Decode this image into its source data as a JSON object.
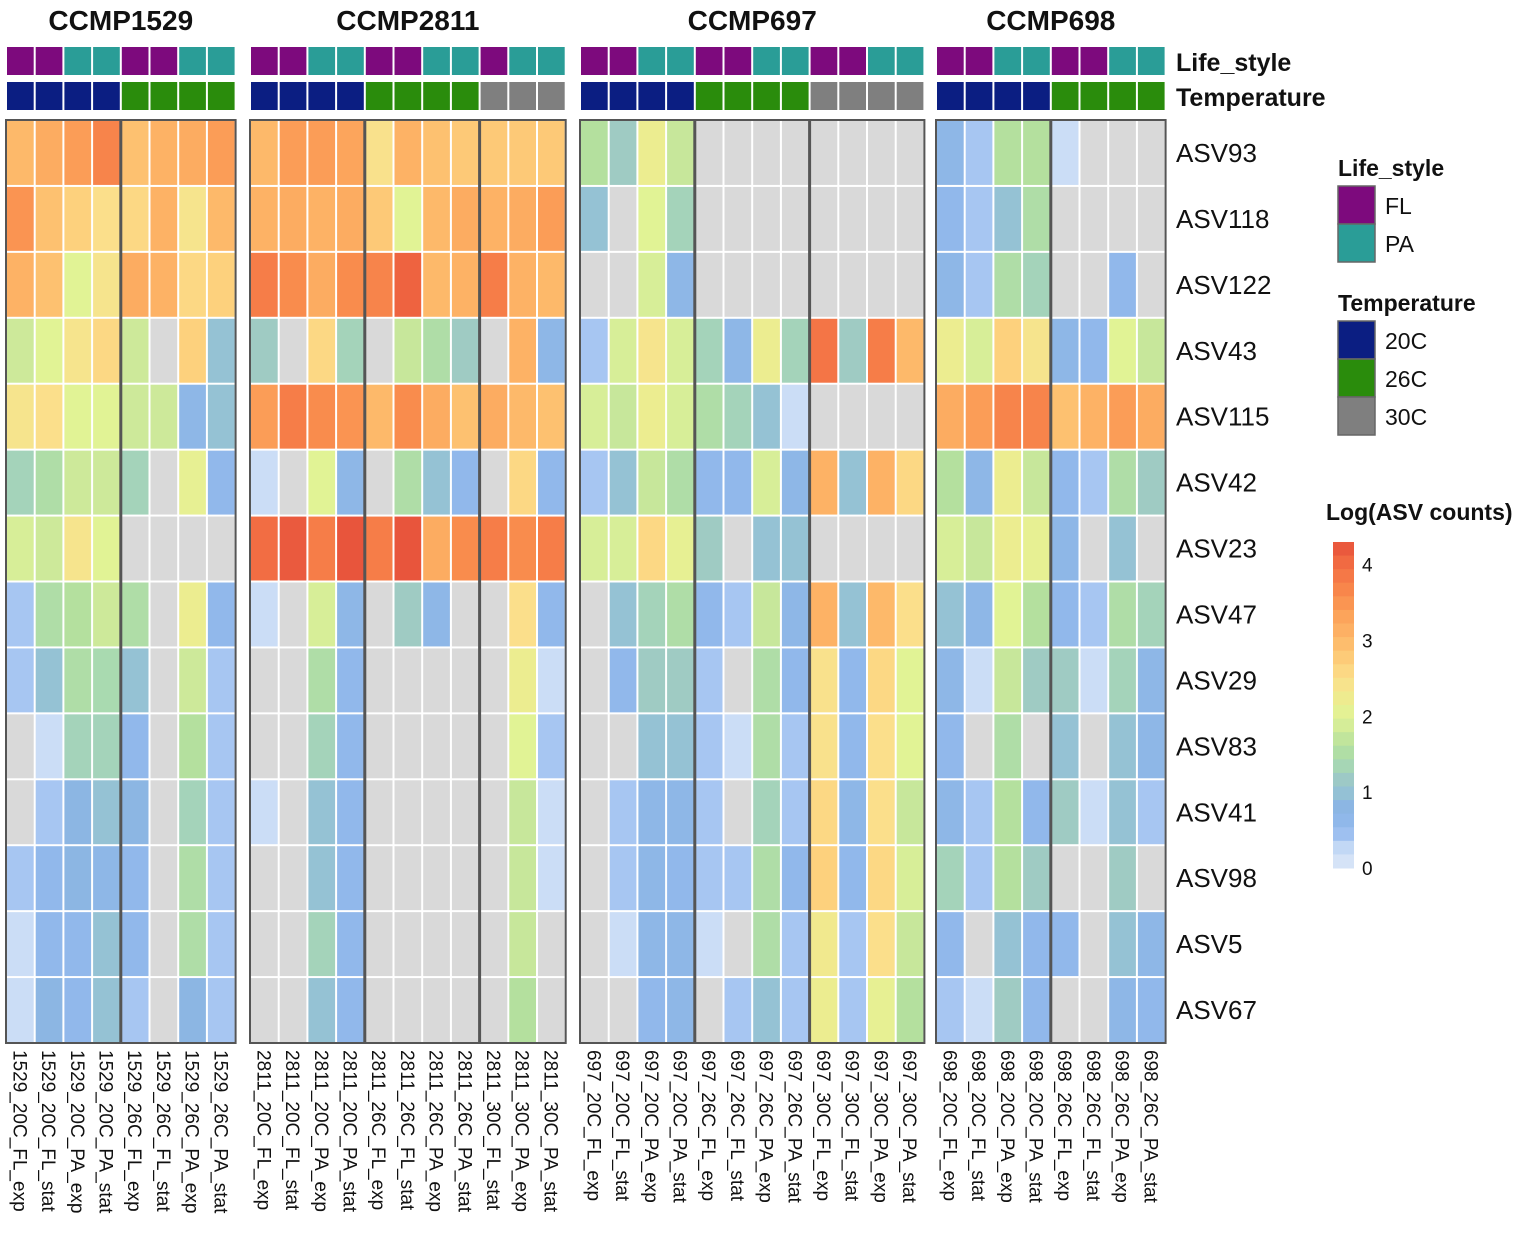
{
  "chart_data": {
    "type": "heatmap",
    "rows": [
      "ASV93",
      "ASV118",
      "ASV122",
      "ASV43",
      "ASV115",
      "ASV42",
      "ASV23",
      "ASV47",
      "ASV29",
      "ASV83",
      "ASV41",
      "ASV98",
      "ASV5",
      "ASV67"
    ],
    "annotation_labels": {
      "life_style": "Life_style",
      "temperature": "Temperature"
    },
    "panels": [
      {
        "title": "CCMP1529",
        "columns": [
          "1529_20C_FL_exp",
          "1529_20C_FL_stat",
          "1529_20C_PA_exp",
          "1529_20C_PA_stat",
          "1529_26C_FL_exp",
          "1529_26C_FL_stat",
          "1529_26C_PA_exp",
          "1529_26C_PA_stat"
        ],
        "group_breaks": [
          4
        ],
        "values": [
          [
            3.0,
            3.2,
            3.4,
            3.7,
            2.9,
            3.1,
            3.2,
            3.4
          ],
          [
            3.5,
            2.9,
            2.7,
            2.5,
            2.6,
            3.1,
            2.4,
            3.0
          ],
          [
            3.1,
            2.9,
            2.0,
            2.4,
            3.2,
            3.1,
            2.6,
            2.7
          ],
          [
            1.8,
            2.0,
            2.4,
            2.6,
            1.8,
            null,
            2.7,
            1.0
          ],
          [
            2.4,
            2.5,
            2.0,
            2.0,
            1.8,
            1.8,
            0.7,
            1.0
          ],
          [
            1.3,
            1.5,
            1.8,
            1.8,
            1.3,
            null,
            2.1,
            0.6
          ],
          [
            1.9,
            1.8,
            2.4,
            2.0,
            null,
            null,
            null,
            null
          ],
          [
            0.4,
            1.5,
            1.6,
            1.8,
            1.5,
            null,
            2.2,
            0.6
          ],
          [
            0.4,
            1.0,
            1.5,
            1.4,
            1.0,
            null,
            1.8,
            0.4
          ],
          [
            null,
            0.2,
            1.3,
            1.3,
            0.6,
            null,
            1.6,
            0.4
          ],
          [
            null,
            0.4,
            0.8,
            1.0,
            0.8,
            null,
            1.3,
            0.4
          ],
          [
            0.4,
            0.6,
            0.8,
            0.7,
            0.6,
            null,
            1.5,
            0.4
          ],
          [
            0.2,
            0.6,
            0.6,
            1.0,
            0.6,
            null,
            1.5,
            0.4
          ],
          [
            0.2,
            0.8,
            0.6,
            1.0,
            0.4,
            null,
            0.8,
            0.4
          ]
        ]
      },
      {
        "title": "CCMP2811",
        "columns": [
          "2811_20C_FL_exp",
          "2811_20C_FL_stat",
          "2811_20C_PA_exp",
          "2811_20C_PA_stat",
          "2811_26C_FL_exp",
          "2811_26C_FL_stat",
          "2811_26C_PA_exp",
          "2811_26C_PA_stat",
          "2811_30C_FL_stat",
          "2811_30C_PA_exp",
          "2811_30C_PA_stat"
        ],
        "group_breaks": [
          4,
          8
        ],
        "values": [
          [
            3.0,
            3.4,
            3.4,
            3.3,
            2.45,
            3.1,
            2.9,
            2.8,
            2.8,
            2.8,
            2.8
          ],
          [
            3.1,
            3.2,
            3.1,
            3.2,
            2.8,
            2.0,
            3.0,
            3.2,
            3.1,
            3.2,
            3.4
          ],
          [
            3.8,
            3.6,
            3.2,
            3.6,
            3.7,
            4.1,
            3.0,
            3.1,
            3.8,
            3.1,
            3.0
          ],
          [
            1.2,
            null,
            2.6,
            1.3,
            null,
            1.75,
            1.5,
            1.2,
            null,
            3.1,
            0.7
          ],
          [
            3.4,
            3.8,
            3.6,
            3.5,
            3.0,
            3.6,
            3.2,
            2.9,
            3.2,
            3.0,
            2.9
          ],
          [
            0.2,
            null,
            2.0,
            0.7,
            null,
            1.5,
            1.0,
            0.6,
            null,
            2.6,
            0.6
          ],
          [
            4.0,
            4.2,
            3.8,
            4.25,
            3.8,
            4.25,
            3.2,
            3.6,
            3.8,
            3.6,
            3.8
          ],
          [
            0.2,
            null,
            1.9,
            0.7,
            null,
            1.2,
            0.7,
            null,
            null,
            2.5,
            0.6
          ],
          [
            null,
            null,
            1.5,
            0.6,
            null,
            null,
            null,
            null,
            null,
            2.2,
            0.2
          ],
          [
            null,
            null,
            1.3,
            0.6,
            null,
            null,
            null,
            null,
            null,
            2.0,
            0.4
          ],
          [
            0.2,
            null,
            1.0,
            0.6,
            null,
            null,
            null,
            null,
            null,
            1.75,
            0.2
          ],
          [
            null,
            null,
            1.0,
            0.6,
            null,
            null,
            null,
            null,
            null,
            1.75,
            0.2
          ],
          [
            null,
            null,
            1.3,
            0.6,
            null,
            null,
            null,
            null,
            null,
            1.75,
            null
          ],
          [
            null,
            null,
            1.0,
            0.6,
            null,
            null,
            null,
            null,
            null,
            1.6,
            null
          ]
        ]
      },
      {
        "title": "CCMP697",
        "columns": [
          "697_20C_FL_exp",
          "697_20C_FL_stat",
          "697_20C_PA_exp",
          "697_20C_PA_stat",
          "697_26C_FL_exp",
          "697_26C_FL_stat",
          "697_26C_PA_exp",
          "697_26C_PA_stat",
          "697_30C_FL_exp",
          "697_30C_FL_stat",
          "697_30C_PA_exp",
          "697_30C_PA_stat"
        ],
        "group_breaks": [
          4,
          8
        ],
        "values": [
          [
            1.6,
            1.2,
            2.2,
            1.75,
            null,
            null,
            null,
            null,
            null,
            null,
            null,
            null
          ],
          [
            1.0,
            null,
            2.0,
            1.3,
            null,
            null,
            null,
            null,
            null,
            null,
            null,
            null
          ],
          [
            null,
            null,
            1.9,
            0.7,
            null,
            null,
            null,
            null,
            null,
            null,
            null,
            null
          ],
          [
            0.4,
            1.9,
            2.4,
            1.9,
            1.3,
            0.7,
            2.2,
            1.3,
            3.9,
            1.2,
            3.8,
            3.0
          ],
          [
            1.9,
            1.75,
            2.2,
            1.9,
            1.5,
            1.3,
            1.0,
            0.2,
            null,
            null,
            null,
            null
          ],
          [
            0.4,
            1.0,
            1.75,
            1.5,
            0.6,
            0.6,
            1.9,
            0.7,
            3.1,
            1.0,
            3.1,
            2.6
          ],
          [
            1.9,
            1.9,
            2.6,
            2.1,
            1.2,
            null,
            1.0,
            1.0,
            null,
            null,
            null,
            null
          ],
          [
            null,
            1.0,
            1.3,
            1.5,
            0.6,
            0.4,
            1.75,
            0.7,
            3.1,
            1.0,
            3.0,
            2.5
          ],
          [
            null,
            0.6,
            1.2,
            1.2,
            0.4,
            null,
            1.5,
            0.6,
            2.45,
            0.6,
            2.6,
            2.0
          ],
          [
            null,
            null,
            1.0,
            1.0,
            0.4,
            0.2,
            1.5,
            0.4,
            2.45,
            0.6,
            2.5,
            2.0
          ],
          [
            null,
            0.4,
            0.7,
            0.7,
            0.4,
            null,
            1.3,
            0.4,
            2.6,
            0.7,
            2.5,
            1.75
          ],
          [
            null,
            0.4,
            0.7,
            0.6,
            0.4,
            0.4,
            1.5,
            0.6,
            2.7,
            0.6,
            2.6,
            1.9
          ],
          [
            null,
            0.2,
            0.7,
            0.7,
            0.2,
            null,
            1.5,
            0.4,
            2.3,
            0.4,
            2.5,
            1.75
          ],
          [
            null,
            null,
            0.6,
            0.7,
            null,
            0.4,
            1.0,
            0.4,
            2.2,
            0.4,
            2.1,
            1.6
          ]
        ]
      },
      {
        "title": "CCMP698",
        "columns": [
          "698_20C_FL_exp",
          "698_20C_FL_stat",
          "698_20C_PA_exp",
          "698_20C_PA_stat",
          "698_26C_FL_exp",
          "698_26C_FL_stat",
          "698_26C_PA_exp",
          "698_26C_PA_stat"
        ],
        "group_breaks": [
          4
        ],
        "values": [
          [
            0.7,
            0.4,
            1.6,
            1.6,
            0.2,
            null,
            null,
            null
          ],
          [
            0.6,
            0.4,
            1.0,
            1.5,
            null,
            null,
            null,
            null
          ],
          [
            0.7,
            0.4,
            1.5,
            1.3,
            null,
            null,
            0.6,
            null
          ],
          [
            2.2,
            1.9,
            2.7,
            2.4,
            0.7,
            0.6,
            2.0,
            1.75
          ],
          [
            3.2,
            3.4,
            3.7,
            3.7,
            2.9,
            3.1,
            3.4,
            3.2
          ],
          [
            1.6,
            0.7,
            2.2,
            1.75,
            0.6,
            0.4,
            1.5,
            1.2
          ],
          [
            1.9,
            1.75,
            2.2,
            2.1,
            0.7,
            null,
            1.0,
            null
          ],
          [
            1.0,
            0.7,
            2.0,
            1.6,
            0.6,
            0.4,
            1.5,
            1.3
          ],
          [
            0.7,
            0.2,
            1.75,
            1.2,
            1.2,
            0.2,
            1.3,
            0.7
          ],
          [
            0.6,
            null,
            1.5,
            null,
            1.0,
            null,
            1.0,
            0.7
          ],
          [
            0.7,
            0.4,
            1.6,
            0.6,
            1.2,
            0.2,
            1.0,
            0.4
          ],
          [
            1.3,
            0.4,
            1.6,
            1.2,
            null,
            null,
            1.2,
            null
          ],
          [
            0.6,
            null,
            1.0,
            0.6,
            0.6,
            null,
            1.0,
            0.7
          ],
          [
            0.4,
            0.2,
            1.2,
            0.6,
            null,
            null,
            0.7,
            0.6
          ]
        ]
      }
    ],
    "legend": {
      "life_style": {
        "title": "Life_style",
        "items": [
          {
            "key": "FL",
            "label": "FL",
            "color": "#7d0a7d"
          },
          {
            "key": "PA",
            "label": "PA",
            "color": "#2a9d97"
          }
        ]
      },
      "temperature": {
        "title": "Temperature",
        "items": [
          {
            "key": "20C",
            "label": "20C",
            "color": "#0b1e82"
          },
          {
            "key": "26C",
            "label": "26C",
            "color": "#2a8c0c"
          },
          {
            "key": "30C",
            "label": "30C",
            "color": "#7f7f7f"
          }
        ]
      },
      "colorbar": {
        "title": "Log(ASV counts)",
        "range": [
          0,
          4.3
        ],
        "ticks": [
          "0",
          "1",
          "2",
          "3",
          "4"
        ]
      }
    },
    "na_color": "#d9d9d9",
    "color_scale": [
      [
        0.0,
        "#dde8f8"
      ],
      [
        0.25,
        "#c6daf6"
      ],
      [
        0.5,
        "#93b9ef"
      ],
      [
        0.8,
        "#8cb6e3"
      ],
      [
        1.0,
        "#95c2d4"
      ],
      [
        1.2,
        "#9fcbc3"
      ],
      [
        1.4,
        "#a9dab0"
      ],
      [
        1.6,
        "#b4e09e"
      ],
      [
        1.8,
        "#cde99a"
      ],
      [
        2.0,
        "#e1f395"
      ],
      [
        2.25,
        "#efeb8f"
      ],
      [
        2.5,
        "#fbdf8b"
      ],
      [
        2.75,
        "#fdcd7a"
      ],
      [
        3.0,
        "#fdb96a"
      ],
      [
        3.3,
        "#fca55c"
      ],
      [
        3.6,
        "#f98c4d"
      ],
      [
        4.0,
        "#f26d43"
      ],
      [
        4.3,
        "#e6503b"
      ]
    ]
  }
}
